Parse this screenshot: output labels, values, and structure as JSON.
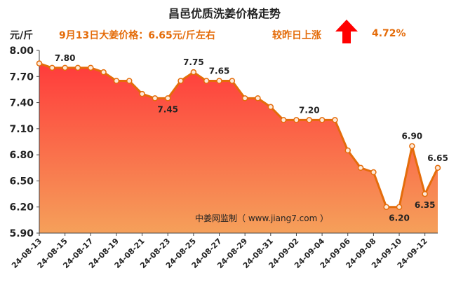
{
  "header": {
    "title": "昌邑优质洗姜价格走势",
    "unit": "元/斤",
    "headline": "9月13日大姜价格：6.65元/斤左右",
    "compare_label": "较昨日上涨",
    "change_value": "4.72%",
    "arrow_icon": "up-arrow-icon",
    "arrow_color": "#ff0000"
  },
  "watermark": "中姜网监制（ www.jiang7.com ）",
  "colors": {
    "line": "#e46c0a",
    "fill_top": "#ff3b3b",
    "fill_bottom": "#f5a05a",
    "marker_fill": "#fde9d9"
  },
  "chart_data": {
    "type": "area",
    "title": "昌邑优质洗姜价格走势",
    "ylabel": "元/斤",
    "ylim": [
      5.9,
      8.0
    ],
    "yticks": [
      "8.00",
      "7.70",
      "7.40",
      "7.10",
      "6.80",
      "6.50",
      "6.20",
      "5.90"
    ],
    "grid": false,
    "x": [
      "24-08-13",
      "24-08-14",
      "24-08-15",
      "24-08-16",
      "24-08-17",
      "24-08-18",
      "24-08-19",
      "24-08-20",
      "24-08-21",
      "24-08-22",
      "24-08-23",
      "24-08-24",
      "24-08-25",
      "24-08-26",
      "24-08-27",
      "24-08-28",
      "24-08-29",
      "24-08-30",
      "24-08-31",
      "24-09-01",
      "24-09-02",
      "24-09-03",
      "24-09-04",
      "24-09-05",
      "24-09-06",
      "24-09-07",
      "24-09-08",
      "24-09-09",
      "24-09-10",
      "24-09-11",
      "24-09-12",
      "24-09-13"
    ],
    "xtick_labels": [
      "24-08-13",
      "24-08-15",
      "24-08-17",
      "24-08-19",
      "24-08-21",
      "24-08-23",
      "24-08-25",
      "24-08-27",
      "24-08-29",
      "24-08-31",
      "24-09-02",
      "24-09-04",
      "24-09-06",
      "24-09-08",
      "24-09-10",
      "24-09-12"
    ],
    "values": [
      7.85,
      7.8,
      7.8,
      7.8,
      7.8,
      7.75,
      7.65,
      7.65,
      7.5,
      7.45,
      7.45,
      7.65,
      7.75,
      7.65,
      7.65,
      7.65,
      7.45,
      7.45,
      7.35,
      7.2,
      7.2,
      7.2,
      7.2,
      7.2,
      6.85,
      6.65,
      6.6,
      6.2,
      6.2,
      6.9,
      6.35,
      6.65
    ],
    "data_labels": [
      {
        "index": 2,
        "text": "7.80"
      },
      {
        "index": 10,
        "text": "7.45"
      },
      {
        "index": 12,
        "text": "7.75"
      },
      {
        "index": 14,
        "text": "7.65"
      },
      {
        "index": 21,
        "text": "7.20"
      },
      {
        "index": 28,
        "text": "6.20"
      },
      {
        "index": 29,
        "text": "6.90"
      },
      {
        "index": 30,
        "text": "6.35"
      },
      {
        "index": 31,
        "text": "6.65"
      }
    ]
  }
}
